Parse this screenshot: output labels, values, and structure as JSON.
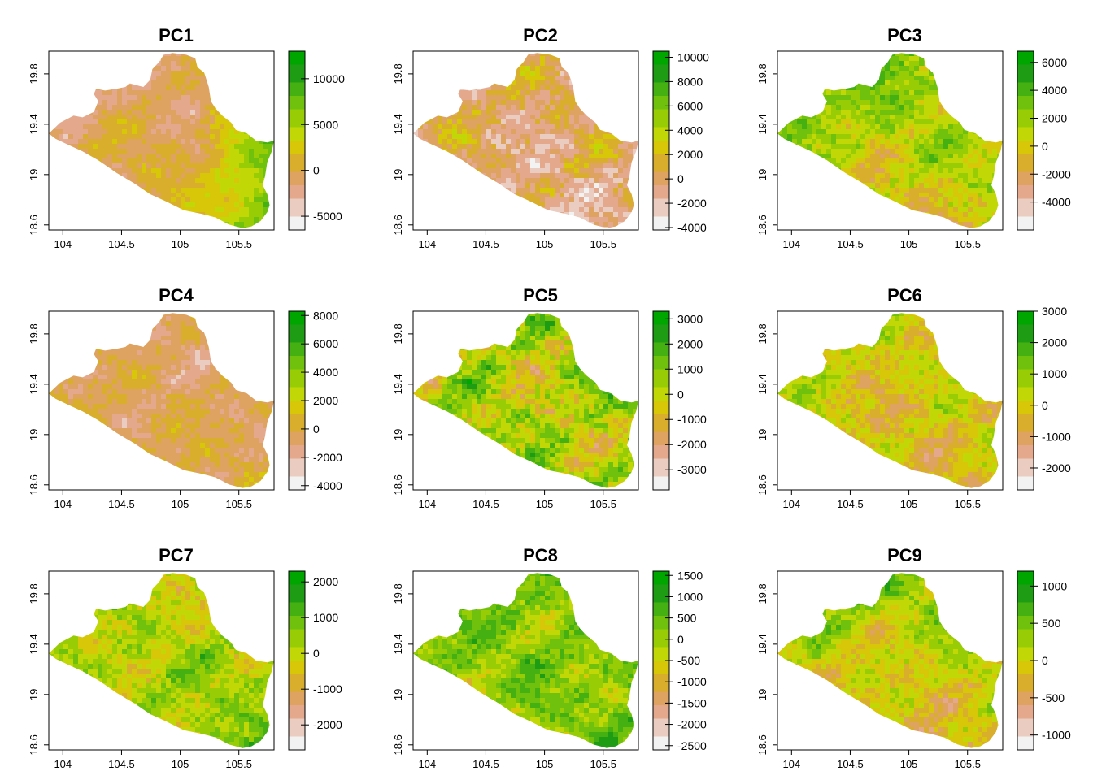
{
  "palette": [
    "#f2f2f2",
    "#eaccc0",
    "#e4a98d",
    "#dea261",
    "#d9ae2c",
    "#d8c708",
    "#c2d806",
    "#98cd06",
    "#70c10d",
    "#45b012",
    "#1e9c14",
    "#00a600"
  ],
  "axis": {
    "x_ticks": [
      "104",
      "104.5",
      "105",
      "105.5"
    ],
    "x_values": [
      104,
      104.5,
      105,
      105.5
    ],
    "y_ticks": [
      "18.6",
      "19",
      "19.4",
      "19.8"
    ],
    "y_values": [
      18.6,
      19.0,
      19.4,
      19.8
    ],
    "xlim": [
      103.88,
      105.8
    ],
    "ylim": [
      18.56,
      19.98
    ]
  },
  "chart_data": [
    {
      "type": "heatmap",
      "title": "PC1",
      "zlim": [
        -6500,
        13000
      ],
      "legend_ticks": [
        "-5000",
        "0",
        "5000",
        "10000"
      ],
      "legend_values": [
        -5000,
        0,
        5000,
        10000
      ],
      "pattern": {
        "base": 0.32,
        "east": 0.45,
        "south": 0.1,
        "west": 0.0,
        "north": -0.05,
        "noise": 0.12,
        "seed": 1
      }
    },
    {
      "type": "heatmap",
      "title": "PC2",
      "zlim": [
        -4200,
        10500
      ],
      "legend_ticks": [
        "-4000",
        "-2000",
        "0",
        "2000",
        "4000",
        "6000",
        "8000",
        "10000"
      ],
      "legend_values": [
        -4000,
        -2000,
        0,
        2000,
        4000,
        6000,
        8000,
        10000
      ],
      "pattern": {
        "base": 0.26,
        "east": 0.05,
        "south": 0.05,
        "west": 0.2,
        "north": 0.15,
        "noise": 0.2,
        "seed": 2
      }
    },
    {
      "type": "heatmap",
      "title": "PC3",
      "zlim": [
        -6000,
        6800
      ],
      "legend_ticks": [
        "-4000",
        "-2000",
        "0",
        "2000",
        "4000",
        "6000"
      ],
      "legend_values": [
        -4000,
        -2000,
        0,
        2000,
        4000,
        6000
      ],
      "pattern": {
        "base": 0.55,
        "east": 0.1,
        "south": -0.3,
        "west": 0.15,
        "north": 0.0,
        "noise": 0.2,
        "seed": 3
      }
    },
    {
      "type": "heatmap",
      "title": "PC4",
      "zlim": [
        -4300,
        8300
      ],
      "legend_ticks": [
        "-4000",
        "-2000",
        "0",
        "2000",
        "4000",
        "6000",
        "8000"
      ],
      "legend_values": [
        -4000,
        -2000,
        0,
        2000,
        4000,
        6000,
        8000
      ],
      "pattern": {
        "base": 0.3,
        "east": 0.0,
        "south": 0.0,
        "west": 0.1,
        "north": -0.05,
        "noise": 0.12,
        "seed": 4
      }
    },
    {
      "type": "heatmap",
      "title": "PC5",
      "zlim": [
        -3800,
        3300
      ],
      "legend_ticks": [
        "-3000",
        "-2000",
        "-1000",
        "0",
        "1000",
        "2000",
        "3000"
      ],
      "legend_values": [
        -3000,
        -2000,
        -1000,
        0,
        1000,
        2000,
        3000
      ],
      "pattern": {
        "base": 0.55,
        "east": 0.05,
        "south": 0.1,
        "west": 0.0,
        "north": 0.1,
        "noise": 0.28,
        "seed": 5
      }
    },
    {
      "type": "heatmap",
      "title": "PC6",
      "zlim": [
        -2700,
        3000
      ],
      "legend_ticks": [
        "-2000",
        "-1000",
        "0",
        "1000",
        "2000",
        "3000"
      ],
      "legend_values": [
        -2000,
        -1000,
        0,
        1000,
        2000,
        3000
      ],
      "pattern": {
        "base": 0.45,
        "east": 0.05,
        "south": -0.05,
        "west": 0.15,
        "north": 0.05,
        "noise": 0.2,
        "seed": 6
      }
    },
    {
      "type": "heatmap",
      "title": "PC7",
      "zlim": [
        -2700,
        2300
      ],
      "legend_ticks": [
        "-2000",
        "-1000",
        "0",
        "1000",
        "2000"
      ],
      "legend_values": [
        -2000,
        -1000,
        0,
        1000,
        2000
      ],
      "pattern": {
        "base": 0.58,
        "east": 0.05,
        "south": 0.0,
        "west": -0.05,
        "north": -0.1,
        "noise": 0.2,
        "seed": 7
      }
    },
    {
      "type": "heatmap",
      "title": "PC8",
      "zlim": [
        -2600,
        1600
      ],
      "legend_ticks": [
        "-2500",
        "-2000",
        "-1500",
        "-1000",
        "-500",
        "0",
        "500",
        "1000",
        "1500"
      ],
      "legend_values": [
        -2500,
        -2000,
        -1500,
        -1000,
        -500,
        0,
        500,
        1000,
        1500
      ],
      "pattern": {
        "base": 0.66,
        "east": 0.05,
        "south": 0.05,
        "west": 0.05,
        "north": 0.1,
        "noise": 0.2,
        "seed": 8
      }
    },
    {
      "type": "heatmap",
      "title": "PC9",
      "zlim": [
        -1200,
        1200
      ],
      "legend_ticks": [
        "-1000",
        "-500",
        "0",
        "500",
        "1000"
      ],
      "legend_values": [
        -1000,
        -500,
        0,
        500,
        1000
      ],
      "pattern": {
        "base": 0.5,
        "east": 0.1,
        "south": -0.2,
        "west": 0.0,
        "north": 0.1,
        "noise": 0.2,
        "seed": 9
      }
    }
  ]
}
